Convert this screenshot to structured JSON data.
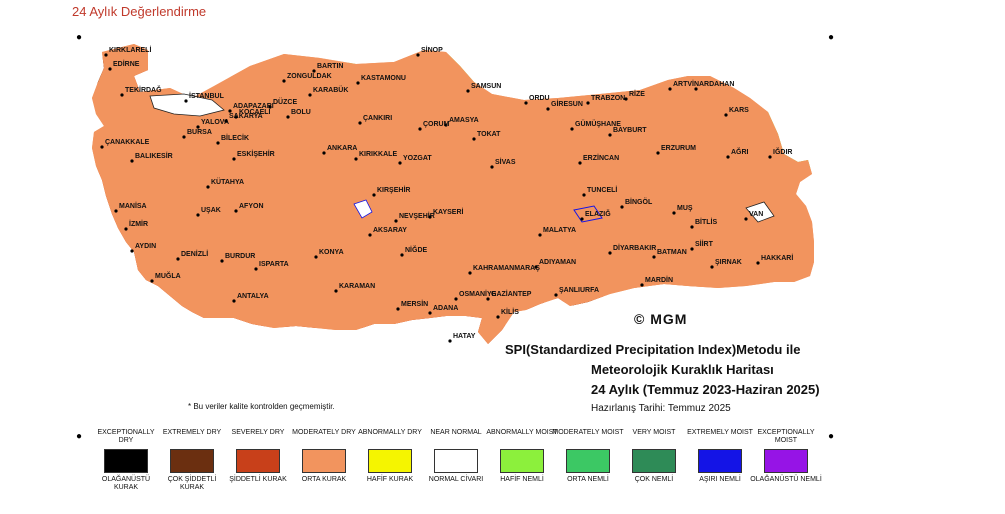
{
  "page_heading": "24 Aylık Değerlendirme",
  "map": {
    "title_line1": "SPI(Standardized Precipitation Index)Metodu ile",
    "title_line2": "Meteorolojik Kuraklık Haritası",
    "title_line3": "24 Aylık (Temmuz 2023-Haziran 2025)",
    "prepared_date": "Hazırlanış Tarihi: Temmuz 2025",
    "note": "* Bu veriler kalite kontrolden geçmemiştir.",
    "logo": "© MGM"
  },
  "colors": {
    "exceptionally_dry": "#000000",
    "extremely_dry": "#6b2f10",
    "severely_dry": "#c8401a",
    "moderately_dry": "#f2945e",
    "abnormally_dry": "#f5f500",
    "near_normal": "#ffffff",
    "abnormally_moist": "#8cf03c",
    "moderately_moist": "#3cc864",
    "very_moist": "#2e8b57",
    "extremely_moist": "#1414e6",
    "exceptionally_moist": "#9614e6"
  },
  "legend": [
    {
      "en": "EXCEPTIONALLY DRY",
      "tr": "OLAĞANÜSTÜ KURAK",
      "color": "#000000"
    },
    {
      "en": "EXTREMELY DRY",
      "tr": "ÇOK ŞİDDETLİ KURAK",
      "color": "#6b2f10"
    },
    {
      "en": "SEVERELY DRY",
      "tr": "ŞİDDETLİ KURAK",
      "color": "#c8401a"
    },
    {
      "en": "MODERATELY DRY",
      "tr": "ORTA KURAK",
      "color": "#f2945e"
    },
    {
      "en": "ABNORMALLY DRY",
      "tr": "HAFİF KURAK",
      "color": "#f5f500"
    },
    {
      "en": "NEAR NORMAL",
      "tr": "NORMAL CİVARI",
      "color": "#ffffff"
    },
    {
      "en": "ABNORMALLY MOIST",
      "tr": "HAFİF NEMLİ",
      "color": "#8cf03c"
    },
    {
      "en": "MODERATELY MOIST",
      "tr": "ORTA NEMLİ",
      "color": "#3cc864"
    },
    {
      "en": "VERY MOIST",
      "tr": "ÇOK NEMLİ",
      "color": "#2e8b57"
    },
    {
      "en": "EXTREMELY MOIST",
      "tr": "AŞIRI NEMLİ",
      "color": "#1414e6"
    },
    {
      "en": "EXCEPTIONALLY MOIST",
      "tr": "OLAĞANÜSTÜ NEMLİ",
      "color": "#9614e6"
    }
  ],
  "cities": [
    "KIRKLARELİ",
    "EDİRNE",
    "TEKİRDAĞ",
    "İSTANBUL",
    "ÇANAKKALE",
    "BALIKESİR",
    "BURSA",
    "YALOVA",
    "KOCAELİ",
    "SAKARYA",
    "ADAPAZARI",
    "DÜZCE",
    "BOLU",
    "BİLECİK",
    "ESKİŞEHİR",
    "KÜTAHYA",
    "MANİSA",
    "İZMİR",
    "AYDIN",
    "MUĞLA",
    "DENİZLİ",
    "UŞAK",
    "AFYON",
    "BURDUR",
    "ISPARTA",
    "ANTALYA",
    "KONYA",
    "KARAMAN",
    "MERSİN",
    "ADANA",
    "OSMANİYE",
    "HATAY",
    "KİLİS",
    "GAZİANTEP",
    "KAHRAMANMARAŞ",
    "ŞANLIURFA",
    "ADIYAMAN",
    "MALATYA",
    "ELAZIĞ",
    "TUNCELİ",
    "BİNGÖL",
    "MUŞ",
    "BİTLİS",
    "VAN",
    "HAKKARİ",
    "ŞIRNAK",
    "SİİRT",
    "BATMAN",
    "MARDİN",
    "DİYARBAKIR",
    "ANKARA",
    "KIRIKKALE",
    "KIRŞEHİR",
    "NEVŞEHİR",
    "AKSARAY",
    "NİĞDE",
    "KAYSERİ",
    "YOZGAT",
    "SİVAS",
    "TOKAT",
    "AMASYA",
    "ÇORUM",
    "SAMSUN",
    "SİNOP",
    "KASTAMONU",
    "ÇANKIRI",
    "KARABÜK",
    "ZONGULDAK",
    "BARTIN",
    "ORDU",
    "GİRESUN",
    "TRABZON",
    "RİZE",
    "ARTVİN",
    "ARDAHAN",
    "KARS",
    "IĞDIR",
    "AĞRI",
    "ERZURUM",
    "BAYBURT",
    "GÜMÜŞHANE",
    "ERZİNCAN"
  ]
}
